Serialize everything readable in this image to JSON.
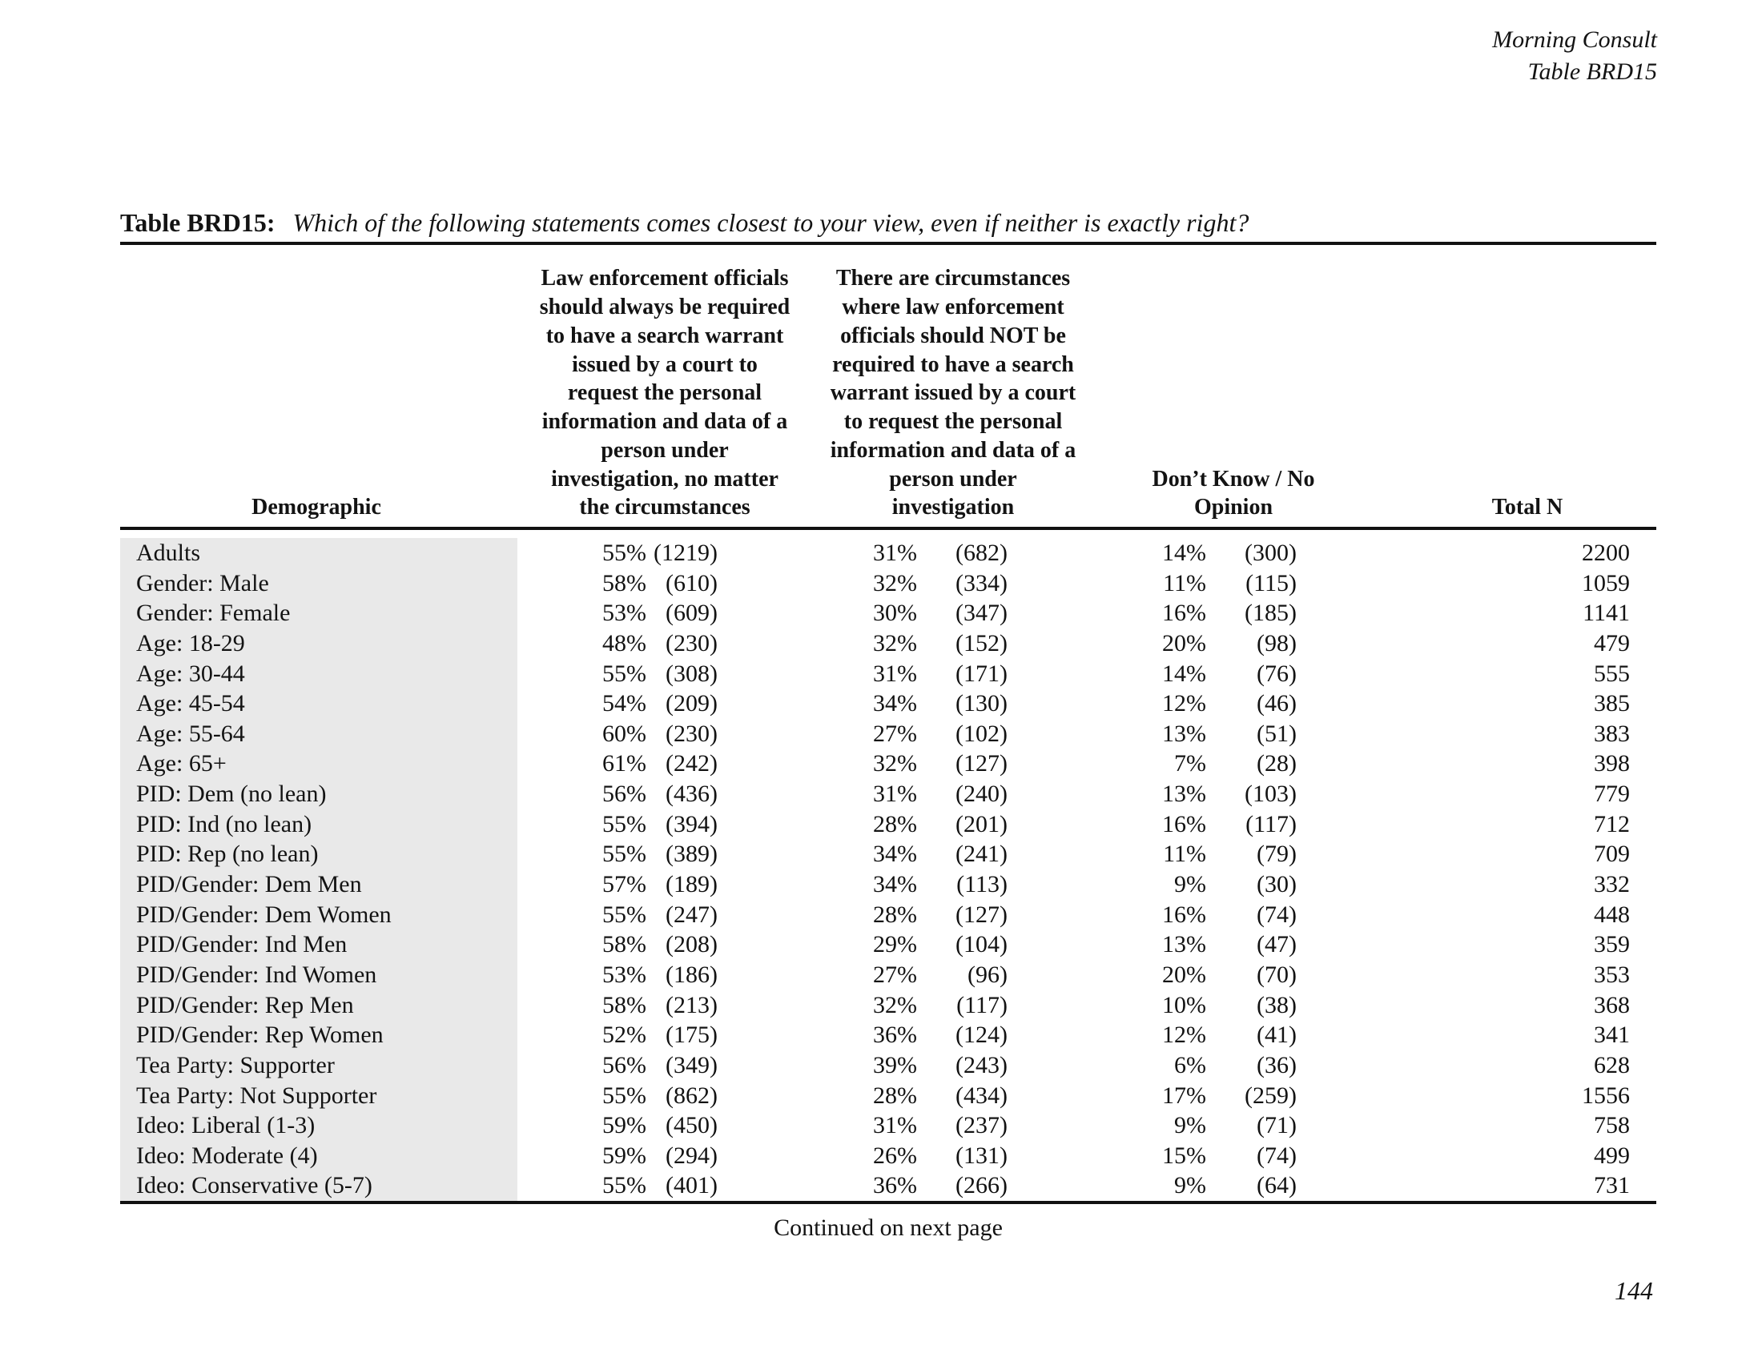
{
  "brand": {
    "line1": "Morning Consult",
    "line2": "Table BRD15"
  },
  "title": {
    "label": "Table BRD15:",
    "question": "Which of the following statements comes closest to your view, even if neither is exactly right?"
  },
  "header": {
    "demographic": "Demographic",
    "col1_text": "Law enforcement officials\nshould always be required\nto have a search warrant\nissued by a court to\nrequest the personal\ninformation and data of a\nperson under\ninvestigation, no matter\nthe circumstances",
    "col2_text": "There are circumstances\nwhere law enforcement\nofficials should NOT be\nrequired to have a search\nwarrant issued by a court\nto request the personal\ninformation and data of a\nperson under\ninvestigation",
    "col3_text": "Don’t Know / No\nOpinion",
    "total": "Total N"
  },
  "table": {
    "rows": [
      {
        "demo": "Adults",
        "p1": "55%",
        "n1": "(1219)",
        "p2": "31%",
        "n2": "(682)",
        "p3": "14%",
        "n3": "(300)",
        "total": "2200"
      },
      {
        "demo": "Gender: Male",
        "p1": "58%",
        "n1": "(610)",
        "p2": "32%",
        "n2": "(334)",
        "p3": "11%",
        "n3": "(115)",
        "total": "1059"
      },
      {
        "demo": "Gender: Female",
        "p1": "53%",
        "n1": "(609)",
        "p2": "30%",
        "n2": "(347)",
        "p3": "16%",
        "n3": "(185)",
        "total": "1141"
      },
      {
        "demo": "Age: 18-29",
        "p1": "48%",
        "n1": "(230)",
        "p2": "32%",
        "n2": "(152)",
        "p3": "20%",
        "n3": "(98)",
        "total": "479"
      },
      {
        "demo": "Age: 30-44",
        "p1": "55%",
        "n1": "(308)",
        "p2": "31%",
        "n2": "(171)",
        "p3": "14%",
        "n3": "(76)",
        "total": "555"
      },
      {
        "demo": "Age: 45-54",
        "p1": "54%",
        "n1": "(209)",
        "p2": "34%",
        "n2": "(130)",
        "p3": "12%",
        "n3": "(46)",
        "total": "385"
      },
      {
        "demo": "Age: 55-64",
        "p1": "60%",
        "n1": "(230)",
        "p2": "27%",
        "n2": "(102)",
        "p3": "13%",
        "n3": "(51)",
        "total": "383"
      },
      {
        "demo": "Age: 65+",
        "p1": "61%",
        "n1": "(242)",
        "p2": "32%",
        "n2": "(127)",
        "p3": "7%",
        "n3": "(28)",
        "total": "398"
      },
      {
        "demo": "PID: Dem (no lean)",
        "p1": "56%",
        "n1": "(436)",
        "p2": "31%",
        "n2": "(240)",
        "p3": "13%",
        "n3": "(103)",
        "total": "779"
      },
      {
        "demo": "PID: Ind (no lean)",
        "p1": "55%",
        "n1": "(394)",
        "p2": "28%",
        "n2": "(201)",
        "p3": "16%",
        "n3": "(117)",
        "total": "712"
      },
      {
        "demo": "PID: Rep (no lean)",
        "p1": "55%",
        "n1": "(389)",
        "p2": "34%",
        "n2": "(241)",
        "p3": "11%",
        "n3": "(79)",
        "total": "709"
      },
      {
        "demo": "PID/Gender: Dem Men",
        "p1": "57%",
        "n1": "(189)",
        "p2": "34%",
        "n2": "(113)",
        "p3": "9%",
        "n3": "(30)",
        "total": "332"
      },
      {
        "demo": "PID/Gender: Dem Women",
        "p1": "55%",
        "n1": "(247)",
        "p2": "28%",
        "n2": "(127)",
        "p3": "16%",
        "n3": "(74)",
        "total": "448"
      },
      {
        "demo": "PID/Gender: Ind Men",
        "p1": "58%",
        "n1": "(208)",
        "p2": "29%",
        "n2": "(104)",
        "p3": "13%",
        "n3": "(47)",
        "total": "359"
      },
      {
        "demo": "PID/Gender: Ind Women",
        "p1": "53%",
        "n1": "(186)",
        "p2": "27%",
        "n2": "(96)",
        "p3": "20%",
        "n3": "(70)",
        "total": "353"
      },
      {
        "demo": "PID/Gender: Rep Men",
        "p1": "58%",
        "n1": "(213)",
        "p2": "32%",
        "n2": "(117)",
        "p3": "10%",
        "n3": "(38)",
        "total": "368"
      },
      {
        "demo": "PID/Gender: Rep Women",
        "p1": "52%",
        "n1": "(175)",
        "p2": "36%",
        "n2": "(124)",
        "p3": "12%",
        "n3": "(41)",
        "total": "341"
      },
      {
        "demo": "Tea Party: Supporter",
        "p1": "56%",
        "n1": "(349)",
        "p2": "39%",
        "n2": "(243)",
        "p3": "6%",
        "n3": "(36)",
        "total": "628"
      },
      {
        "demo": "Tea Party: Not Supporter",
        "p1": "55%",
        "n1": "(862)",
        "p2": "28%",
        "n2": "(434)",
        "p3": "17%",
        "n3": "(259)",
        "total": "1556"
      },
      {
        "demo": "Ideo: Liberal (1-3)",
        "p1": "59%",
        "n1": "(450)",
        "p2": "31%",
        "n2": "(237)",
        "p3": "9%",
        "n3": "(71)",
        "total": "758"
      },
      {
        "demo": "Ideo: Moderate (4)",
        "p1": "59%",
        "n1": "(294)",
        "p2": "26%",
        "n2": "(131)",
        "p3": "15%",
        "n3": "(74)",
        "total": "499"
      },
      {
        "demo": "Ideo: Conservative (5-7)",
        "p1": "55%",
        "n1": "(401)",
        "p2": "36%",
        "n2": "(266)",
        "p3": "9%",
        "n3": "(64)",
        "total": "731"
      }
    ]
  },
  "footer": {
    "continued": "Continued on next page",
    "page": "144"
  }
}
